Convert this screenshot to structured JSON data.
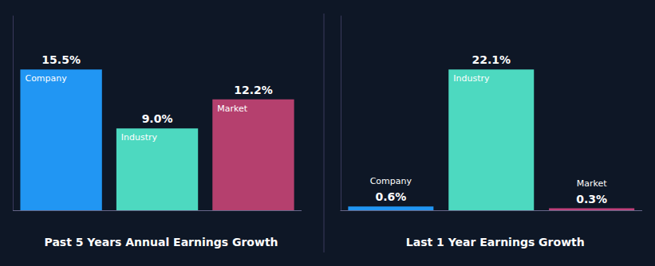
{
  "chart_data": [
    {
      "type": "bar",
      "title": "Past 5 Years Annual Earnings Growth",
      "categories": [
        "Company",
        "Industry",
        "Market"
      ],
      "values": [
        15.5,
        9.0,
        12.2
      ],
      "value_labels": [
        "15.5%",
        "9.0%",
        "12.2%"
      ],
      "colors": [
        "#2196f3",
        "#4dd9c0",
        "#b5406e"
      ],
      "ylim": [
        0,
        21.39
      ],
      "grid": false,
      "data_labels": true,
      "tick_labels": false
    },
    {
      "type": "bar",
      "title": "Last 1 Year Earnings Growth",
      "categories": [
        "Company",
        "Industry",
        "Market"
      ],
      "values": [
        0.6,
        22.1,
        0.3
      ],
      "value_labels": [
        "0.6%",
        "22.1%",
        "0.3%"
      ],
      "colors": [
        "#2196f3",
        "#4dd9c0",
        "#c0407a"
      ],
      "ylim": [
        0,
        30.498
      ],
      "grid": false,
      "data_labels": true,
      "tick_labels": false
    }
  ]
}
